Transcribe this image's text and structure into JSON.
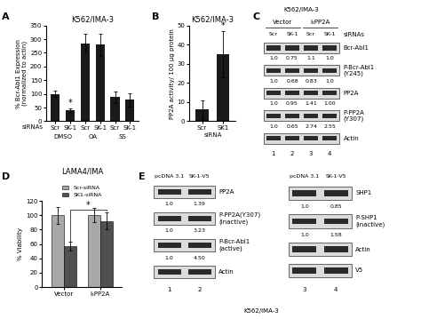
{
  "chart_data": [
    {
      "panel": "A",
      "type": "bar",
      "title": "K562/IMA-3",
      "x_label": "siRNAs",
      "y_label": "% Bcr-Abl1 Expression\n(normalized to actin)",
      "categories": [
        "Scr",
        "SK-1",
        "Scr",
        "SK-1",
        "Scr",
        "SK-1"
      ],
      "group_labels": [
        "DMSO",
        "OA",
        "SS"
      ],
      "values": [
        100,
        40,
        285,
        280,
        88,
        78
      ],
      "errors": [
        12,
        7,
        35,
        40,
        22,
        25
      ],
      "color": "#1a1a1a",
      "ylim": [
        0,
        350
      ],
      "yticks": [
        0,
        50,
        100,
        150,
        200,
        250,
        300,
        350
      ],
      "annotations": [
        {
          "text": "*",
          "category": 1
        }
      ]
    },
    {
      "panel": "B",
      "type": "bar",
      "title": "K562/IMA-3",
      "x_label": "siRNA",
      "y_label": "PP2A activity/ 100 µg protein",
      "categories": [
        "Scr",
        "SK1"
      ],
      "values": [
        6,
        35
      ],
      "errors": [
        5,
        12
      ],
      "color": "#1a1a1a",
      "ylim": [
        0,
        50
      ],
      "yticks": [
        0,
        10,
        20,
        30,
        40,
        50
      ],
      "annotations": [
        {
          "text": "*",
          "category": 1
        }
      ]
    },
    {
      "panel": "D",
      "type": "grouped_bar",
      "title": "LAMA4/IMA",
      "y_label": "% Viability",
      "categories": [
        "Vector",
        "I₂PP2A"
      ],
      "series": [
        {
          "name": "Scr-siRNA",
          "color": "#a8a8a8",
          "values": [
            100,
            100
          ],
          "errors": [
            12,
            10
          ]
        },
        {
          "name": "SK1-siRNA",
          "color": "#505050",
          "values": [
            57,
            92
          ],
          "errors": [
            6,
            12
          ]
        }
      ],
      "ylim": [
        0,
        120
      ],
      "yticks": [
        0,
        20,
        40,
        60,
        80,
        100,
        120
      ],
      "legend": "top",
      "annotations": [
        {
          "text": "*"
        }
      ]
    }
  ],
  "blots": [
    {
      "panel": "C",
      "title": "K562/IMA-3",
      "groups": [
        "Vector",
        "I₂PP2A"
      ],
      "lane_labels": [
        "Scr",
        "SK-1",
        "Scr",
        "SK-1"
      ],
      "lane_label_title": "siRNAs",
      "rows": [
        {
          "label": "Bcr-Abl1",
          "values": [
            "1.0",
            "0.75",
            "1.1",
            "1.0"
          ]
        },
        {
          "label": "P-Bcr-Abl1\n(Y245)",
          "values": [
            "1.0",
            "0.68",
            "0.83",
            "1.0"
          ]
        },
        {
          "label": "PP2A",
          "values": [
            "1.0",
            "0.95",
            "1.41",
            "1.00"
          ]
        },
        {
          "label": "P-PP2A\n(Y307)",
          "values": [
            "1.0",
            "0.65",
            "2.74",
            "2.55"
          ]
        },
        {
          "label": "Actin"
        }
      ],
      "lane_numbers": [
        "1",
        "2",
        "3",
        "4"
      ]
    },
    {
      "panel": "E",
      "footer": "K562/IMA-3",
      "blots": [
        {
          "lane_labels": [
            "pcDNA 3.1",
            "SK-1-V5"
          ],
          "rows": [
            {
              "label": "PP2A",
              "values": [
                "1.0",
                "1.39"
              ]
            },
            {
              "label": "P-PP2A(Y307)\n(inactive)",
              "values": [
                "1.0",
                "3.23"
              ]
            },
            {
              "label": "P-Bcr-Abl1\n(active)",
              "values": [
                "1.0",
                "4.50"
              ]
            },
            {
              "label": "Actin"
            }
          ],
          "lane_numbers": [
            "1",
            "2"
          ]
        },
        {
          "lane_labels": [
            "pcDNA 3.1",
            "SK-1-V5"
          ],
          "rows": [
            {
              "label": "SHP1",
              "values": [
                "1.0",
                "0.85"
              ]
            },
            {
              "label": "P-SHP1\n(inactive)",
              "values": [
                "1.0",
                "1.58"
              ]
            },
            {
              "label": "Actin"
            },
            {
              "label": "V5"
            }
          ],
          "lane_numbers": [
            "3",
            "4"
          ]
        }
      ]
    }
  ]
}
